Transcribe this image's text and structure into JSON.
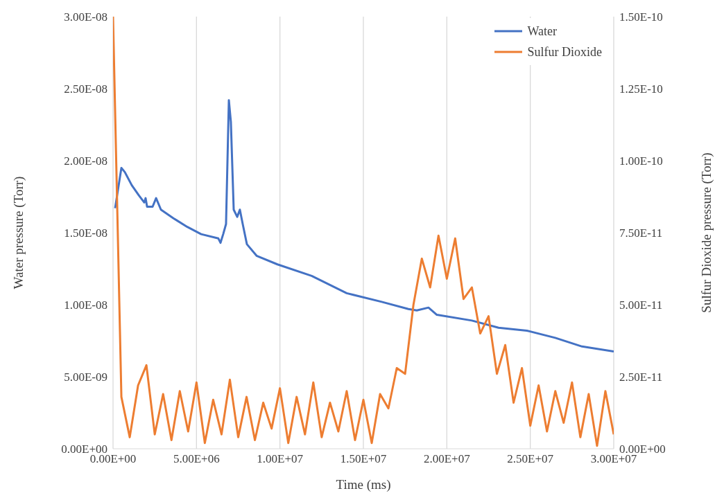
{
  "chart_data": {
    "type": "line",
    "xlabel": "Time (ms)",
    "ylabel": "Water pressure (Torr)",
    "y2label": "Sulfur Dioxide pressure (Torr)",
    "xlim": [
      0,
      30000000
    ],
    "xticks": [
      {
        "value": 0,
        "label": "0.00E+00"
      },
      {
        "value": 5000000,
        "label": "5.00E+06"
      },
      {
        "value": 10000000,
        "label": "1.00E+07"
      },
      {
        "value": 15000000,
        "label": "1.50E+07"
      },
      {
        "value": 20000000,
        "label": "2.00E+07"
      },
      {
        "value": 25000000,
        "label": "2.50E+07"
      },
      {
        "value": 30000000,
        "label": "3.00E+07"
      }
    ],
    "ylim": [
      0,
      3e-08
    ],
    "yticks": [
      {
        "value": 0,
        "label": "0.00E+00"
      },
      {
        "value": 5e-09,
        "label": "5.00E-09"
      },
      {
        "value": 1e-08,
        "label": "1.00E-08"
      },
      {
        "value": 1.5e-08,
        "label": "1.50E-08"
      },
      {
        "value": 2e-08,
        "label": "2.00E-08"
      },
      {
        "value": 2.5e-08,
        "label": "2.50E-08"
      },
      {
        "value": 3e-08,
        "label": "3.00E-08"
      }
    ],
    "y2lim": [
      0,
      1.5e-10
    ],
    "y2ticks": [
      {
        "value": 0,
        "label": "0.00E+00"
      },
      {
        "value": 2.5e-11,
        "label": "2.50E-11"
      },
      {
        "value": 5e-11,
        "label": "5.00E-11"
      },
      {
        "value": 7.5e-11,
        "label": "7.50E-11"
      },
      {
        "value": 1e-10,
        "label": "1.00E-10"
      },
      {
        "value": 1.25e-10,
        "label": "1.25E-10"
      },
      {
        "value": 1.5e-10,
        "label": "1.50E-10"
      }
    ],
    "grid": true,
    "legend": "top right",
    "marker": "none",
    "line_style": "solid",
    "series": [
      {
        "name": "Water",
        "color": "#4472c4",
        "x": [
          125000,
          500000,
          710000,
          1120000,
          1540000,
          1870000,
          1950000,
          2040000,
          2370000,
          2580000,
          2870000,
          3620000,
          4450000,
          5280000,
          6310000,
          6440000,
          6600000,
          6770000,
          6940000,
          7060000,
          7230000,
          7440000,
          7600000,
          7770000,
          8020000,
          8600000,
          9850000,
          11900000,
          14000000,
          16100000,
          17700000,
          18200000,
          18900000,
          19400000,
          21500000,
          23100000,
          24800000,
          26500000,
          28100000,
          30000000
        ],
        "values": [
          1.67e-08,
          1.95e-08,
          1.92e-08,
          1.83e-08,
          1.76e-08,
          1.71e-08,
          1.74e-08,
          1.68e-08,
          1.68e-08,
          1.74e-08,
          1.66e-08,
          1.6e-08,
          1.54e-08,
          1.49e-08,
          1.46e-08,
          1.43e-08,
          1.49e-08,
          1.56e-08,
          2.42e-08,
          2.27e-08,
          1.66e-08,
          1.61e-08,
          1.66e-08,
          1.56e-08,
          1.42e-08,
          1.34e-08,
          1.28e-08,
          1.2e-08,
          1.08e-08,
          1.02e-08,
          9.7e-09,
          9.6e-09,
          9.8e-09,
          9.3e-09,
          8.9e-09,
          8.4e-09,
          8.2e-09,
          7.7e-09,
          7.1e-09,
          6.75e-09
        ]
      },
      {
        "name": "Sulfur Dioxide",
        "color": "#ed7d31",
        "axis": "y2",
        "x": [
          0,
          500000,
          1000000,
          1500000,
          2000000,
          2500000,
          3000000,
          3500000,
          4000000,
          4500000,
          5000000,
          5500000,
          6000000,
          6500000,
          7000000,
          7500000,
          8000000,
          8500000,
          9000000,
          9500000,
          10000000,
          10500000,
          11000000,
          11500000,
          12000000,
          12500000,
          13000000,
          13500000,
          14000000,
          14500000,
          15000000,
          15500000,
          16000000,
          16500000,
          17000000,
          17500000,
          18000000,
          18500000,
          19000000,
          19500000,
          20000000,
          20500000,
          21000000,
          21500000,
          22000000,
          22500000,
          23000000,
          23500000,
          24000000,
          24500000,
          25000000,
          25500000,
          26000000,
          26500000,
          27000000,
          27500000,
          28000000,
          28500000,
          29000000,
          29500000,
          30000000
        ],
        "values": [
          1.5e-10,
          1.8e-11,
          4e-12,
          2.2e-11,
          2.9e-11,
          5e-12,
          1.9e-11,
          3e-12,
          2e-11,
          6e-12,
          2.3e-11,
          2e-12,
          1.7e-11,
          5e-12,
          2.4e-11,
          4e-12,
          1.8e-11,
          3e-12,
          1.6e-11,
          7e-12,
          2.1e-11,
          2e-12,
          1.8e-11,
          5e-12,
          2.3e-11,
          4e-12,
          1.6e-11,
          6e-12,
          2e-11,
          3e-12,
          1.7e-11,
          2e-12,
          1.9e-11,
          1.4e-11,
          2.8e-11,
          2.6e-11,
          5e-11,
          6.6e-11,
          5.6e-11,
          7.4e-11,
          5.9e-11,
          7.3e-11,
          5.2e-11,
          5.6e-11,
          4e-11,
          4.6e-11,
          2.6e-11,
          3.6e-11,
          1.6e-11,
          2.8e-11,
          8e-12,
          2.2e-11,
          6e-12,
          2e-11,
          9e-12,
          2.3e-11,
          4e-12,
          1.9e-11,
          1e-12,
          2e-11,
          5e-12
        ]
      }
    ]
  }
}
